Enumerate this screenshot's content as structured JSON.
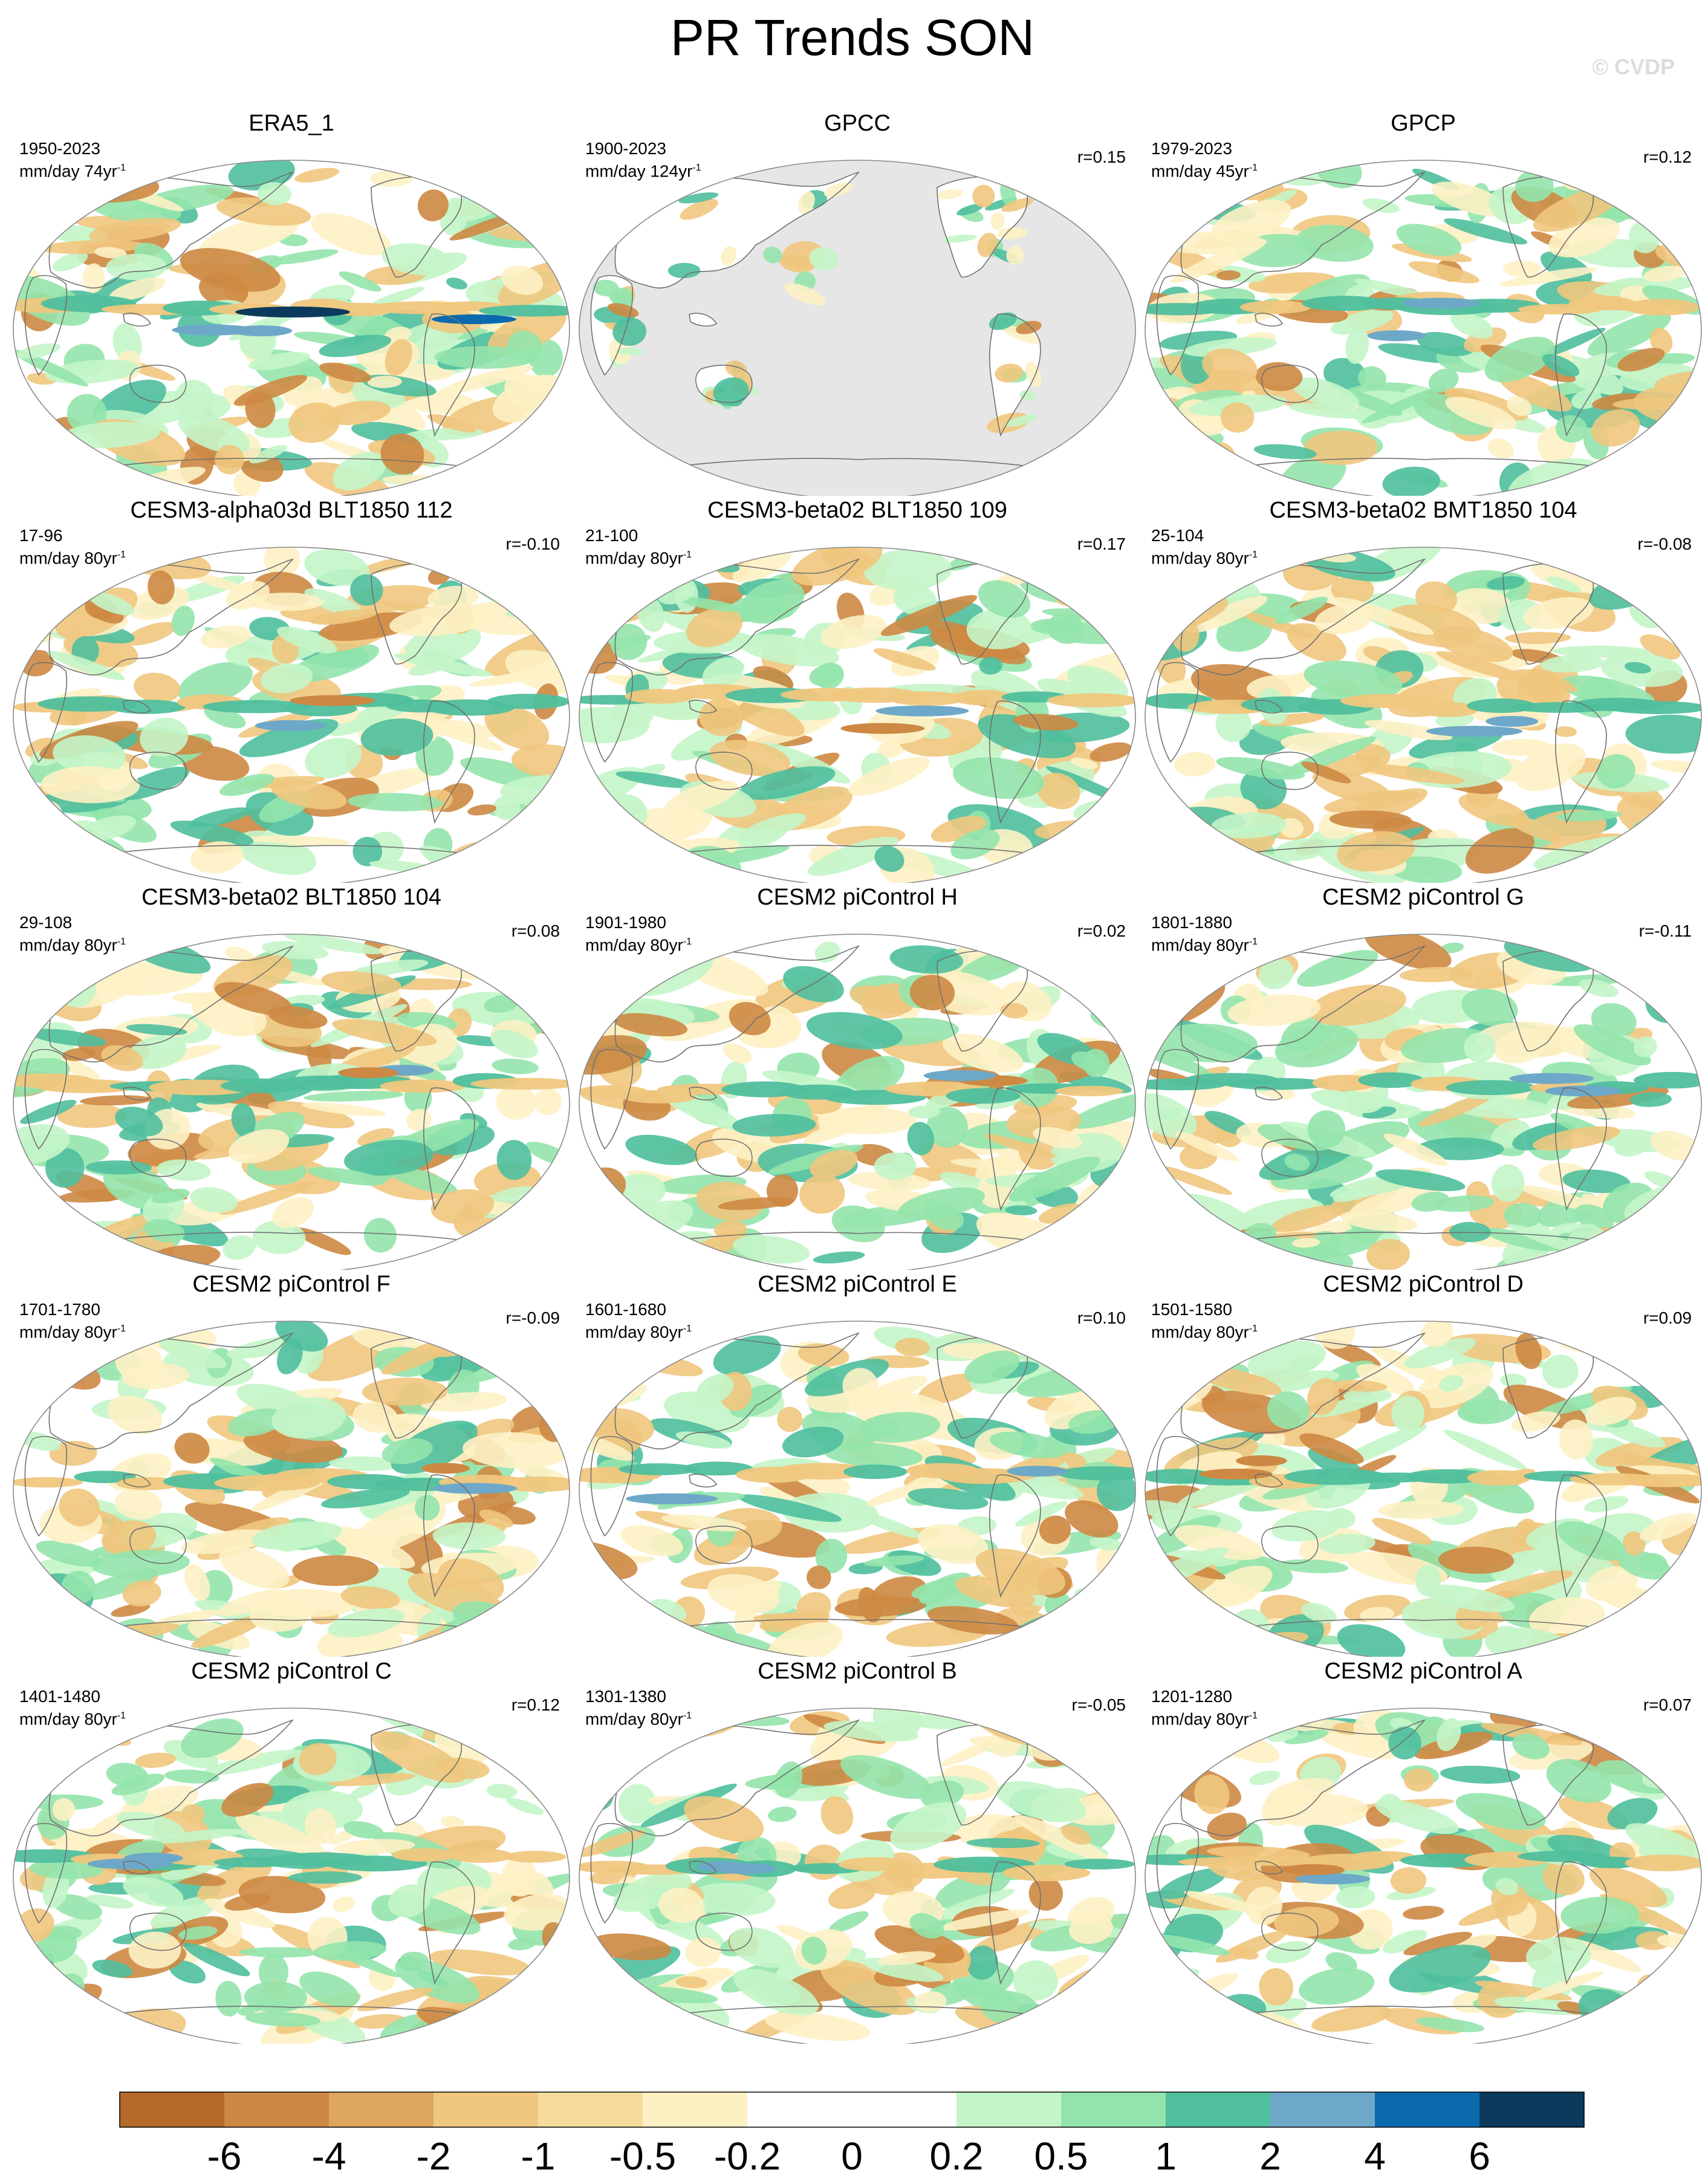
{
  "title": "PR Trends SON",
  "watermark": "© CVDP",
  "chart_data": {
    "type": "map-panels",
    "title": "PR Trends SON",
    "projection": "Robinson-like global map centered on the Pacific",
    "panels": [
      {
        "name": "ERA5_1",
        "years": "1950-2023",
        "units": "mm/day 74yr",
        "r": ""
      },
      {
        "name": "GPCC",
        "years": "1900-2023",
        "units": "mm/day 124yr",
        "r": "r=0.15",
        "ocean_masked": true
      },
      {
        "name": "GPCP",
        "years": "1979-2023",
        "units": "mm/day 45yr",
        "r": "r=0.12"
      },
      {
        "name": "CESM3-alpha03d BLT1850 112",
        "years": "17-96",
        "units": "mm/day 80yr",
        "r": "r=-0.10"
      },
      {
        "name": "CESM3-beta02 BLT1850 109",
        "years": "21-100",
        "units": "mm/day 80yr",
        "r": "r=0.17"
      },
      {
        "name": "CESM3-beta02 BMT1850 104",
        "years": "25-104",
        "units": "mm/day 80yr",
        "r": "r=-0.08"
      },
      {
        "name": "CESM3-beta02 BLT1850 104",
        "years": "29-108",
        "units": "mm/day 80yr",
        "r": "r=0.08"
      },
      {
        "name": "CESM2 piControl H",
        "years": "1901-1980",
        "units": "mm/day 80yr",
        "r": "r=0.02"
      },
      {
        "name": "CESM2 piControl G",
        "years": "1801-1880",
        "units": "mm/day 80yr",
        "r": "r=-0.11"
      },
      {
        "name": "CESM2 piControl F",
        "years": "1701-1780",
        "units": "mm/day 80yr",
        "r": "r=-0.09"
      },
      {
        "name": "CESM2 piControl E",
        "years": "1601-1680",
        "units": "mm/day 80yr",
        "r": "r=0.10"
      },
      {
        "name": "CESM2 piControl D",
        "years": "1501-1580",
        "units": "mm/day 80yr",
        "r": "r=0.09"
      },
      {
        "name": "CESM2 piControl C",
        "years": "1401-1480",
        "units": "mm/day 80yr",
        "r": "r=0.12"
      },
      {
        "name": "CESM2 piControl B",
        "years": "1301-1380",
        "units": "mm/day 80yr",
        "r": "r=-0.05"
      },
      {
        "name": "CESM2 piControl A",
        "years": "1201-1280",
        "units": "mm/day 80yr",
        "r": "r=0.07"
      }
    ],
    "colorbar": {
      "labels": [
        "-6",
        "-4",
        "-2",
        "-1",
        "-0.5",
        "-0.2",
        "0",
        "0.2",
        "0.5",
        "1",
        "2",
        "4",
        "6"
      ],
      "colors": [
        "#b5692a",
        "#cd8843",
        "#dea75f",
        "#f0c77e",
        "#f5dc9c",
        "#fdf1c4",
        "#ffffff",
        "#ffffff",
        "#c4f5c9",
        "#93e4ac",
        "#4fbf9d",
        "#6ea8c8",
        "#0b6aad",
        "#0b3a5c"
      ]
    },
    "palette": {
      "dry_strong": "#cd8843",
      "dry": "#f0c77e",
      "dry_light": "#fdf1c4",
      "wet_light": "#c4f5c9",
      "wet": "#93e4ac",
      "wet_strong": "#4fbf9d",
      "very_wet": "#6ea8c8",
      "extreme_wet": "#0b3a5c",
      "masked": "#e6e6e6",
      "coast": "#707070"
    }
  }
}
